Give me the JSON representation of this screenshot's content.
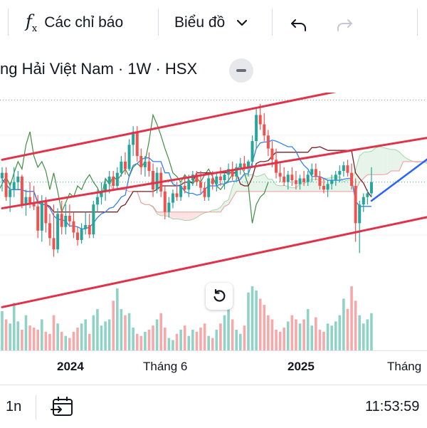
{
  "toolbar": {
    "indicators_icon": "fx-icon",
    "indicators_label": "Các chỉ báo",
    "chart_type_label": "Biểu đồ",
    "chart_type_icon": "chevron-down-icon",
    "undo_icon": "undo-icon",
    "redo_icon": "redo-icon"
  },
  "legend": {
    "title": "ng Hải Việt Nam · 1W · HSX",
    "collapse_icon": "minus-icon"
  },
  "xaxis": {
    "labels": [
      "2024",
      "Tháng 6",
      "2025",
      "Tháng"
    ]
  },
  "reset_button_icon": "reset-icon",
  "bottom_bar": {
    "interval": "1n",
    "goto_icon": "calendar-goto-icon",
    "time": "11:53:59"
  },
  "colors": {
    "up": "#26a69a",
    "down": "#ef5350",
    "channel": "#e0334a",
    "projection": "#2962ff",
    "tenkan": "#2f80ed",
    "kijun": "#7b1f28",
    "chikou": "#3f8f3f",
    "cloud_bull": "#e6f4ea",
    "cloud_bear": "#fde2e2"
  },
  "chart_data": {
    "type": "candlestick",
    "timeframe": "1W",
    "exchange": "HSX",
    "x_axis_labels": [
      "2024",
      "Tháng 6",
      "2025",
      "Tháng"
    ],
    "price_range": [
      0,
      100
    ],
    "note": "prices in relative units (0 = bottom of visible pane, 100 = top); the price scale is not visible",
    "candles": [
      {
        "o": 54,
        "h": 60,
        "l": 47,
        "c": 57
      },
      {
        "o": 57,
        "h": 60,
        "l": 42,
        "c": 44
      },
      {
        "o": 44,
        "h": 52,
        "l": 36,
        "c": 48
      },
      {
        "o": 48,
        "h": 60,
        "l": 44,
        "c": 52
      },
      {
        "o": 52,
        "h": 58,
        "l": 48,
        "c": 55
      },
      {
        "o": 55,
        "h": 56,
        "l": 38,
        "c": 40
      },
      {
        "o": 40,
        "h": 48,
        "l": 34,
        "c": 44
      },
      {
        "o": 44,
        "h": 52,
        "l": 38,
        "c": 41
      },
      {
        "o": 41,
        "h": 50,
        "l": 37,
        "c": 39
      },
      {
        "o": 39,
        "h": 45,
        "l": 22,
        "c": 26
      },
      {
        "o": 26,
        "h": 45,
        "l": 20,
        "c": 42
      },
      {
        "o": 42,
        "h": 44,
        "l": 25,
        "c": 30
      },
      {
        "o": 30,
        "h": 35,
        "l": 18,
        "c": 22
      },
      {
        "o": 22,
        "h": 40,
        "l": 12,
        "c": 16
      },
      {
        "o": 16,
        "h": 38,
        "l": 14,
        "c": 35
      },
      {
        "o": 35,
        "h": 42,
        "l": 24,
        "c": 28
      },
      {
        "o": 28,
        "h": 40,
        "l": 24,
        "c": 34
      },
      {
        "o": 34,
        "h": 40,
        "l": 28,
        "c": 31
      },
      {
        "o": 31,
        "h": 36,
        "l": 22,
        "c": 25
      },
      {
        "o": 25,
        "h": 28,
        "l": 18,
        "c": 21
      },
      {
        "o": 21,
        "h": 30,
        "l": 19,
        "c": 27
      },
      {
        "o": 27,
        "h": 36,
        "l": 24,
        "c": 29
      },
      {
        "o": 29,
        "h": 35,
        "l": 22,
        "c": 24
      },
      {
        "o": 24,
        "h": 42,
        "l": 22,
        "c": 40
      },
      {
        "o": 40,
        "h": 48,
        "l": 36,
        "c": 44
      },
      {
        "o": 44,
        "h": 52,
        "l": 40,
        "c": 47
      },
      {
        "o": 47,
        "h": 54,
        "l": 42,
        "c": 51
      },
      {
        "o": 51,
        "h": 58,
        "l": 46,
        "c": 55
      },
      {
        "o": 55,
        "h": 58,
        "l": 48,
        "c": 50
      },
      {
        "o": 50,
        "h": 60,
        "l": 48,
        "c": 57
      },
      {
        "o": 57,
        "h": 66,
        "l": 55,
        "c": 63
      },
      {
        "o": 63,
        "h": 68,
        "l": 56,
        "c": 59
      },
      {
        "o": 59,
        "h": 75,
        "l": 58,
        "c": 72
      },
      {
        "o": 72,
        "h": 82,
        "l": 66,
        "c": 79
      },
      {
        "o": 79,
        "h": 82,
        "l": 63,
        "c": 66
      },
      {
        "o": 66,
        "h": 70,
        "l": 56,
        "c": 60
      },
      {
        "o": 60,
        "h": 66,
        "l": 55,
        "c": 63
      },
      {
        "o": 63,
        "h": 68,
        "l": 55,
        "c": 58
      },
      {
        "o": 58,
        "h": 62,
        "l": 44,
        "c": 48
      },
      {
        "o": 48,
        "h": 60,
        "l": 46,
        "c": 57
      },
      {
        "o": 57,
        "h": 60,
        "l": 44,
        "c": 47
      },
      {
        "o": 47,
        "h": 50,
        "l": 32,
        "c": 36
      },
      {
        "o": 36,
        "h": 44,
        "l": 33,
        "c": 41
      },
      {
        "o": 41,
        "h": 48,
        "l": 38,
        "c": 46
      },
      {
        "o": 46,
        "h": 52,
        "l": 42,
        "c": 44
      },
      {
        "o": 44,
        "h": 52,
        "l": 42,
        "c": 50
      },
      {
        "o": 50,
        "h": 56,
        "l": 46,
        "c": 48
      },
      {
        "o": 48,
        "h": 56,
        "l": 44,
        "c": 53
      },
      {
        "o": 53,
        "h": 58,
        "l": 50,
        "c": 56
      },
      {
        "o": 56,
        "h": 58,
        "l": 50,
        "c": 52
      },
      {
        "o": 52,
        "h": 58,
        "l": 46,
        "c": 49
      },
      {
        "o": 49,
        "h": 52,
        "l": 42,
        "c": 44
      },
      {
        "o": 44,
        "h": 56,
        "l": 42,
        "c": 54
      },
      {
        "o": 54,
        "h": 58,
        "l": 48,
        "c": 51
      },
      {
        "o": 51,
        "h": 57,
        "l": 47,
        "c": 55
      },
      {
        "o": 55,
        "h": 60,
        "l": 50,
        "c": 53
      },
      {
        "o": 53,
        "h": 58,
        "l": 48,
        "c": 56
      },
      {
        "o": 56,
        "h": 62,
        "l": 52,
        "c": 59
      },
      {
        "o": 59,
        "h": 63,
        "l": 53,
        "c": 55
      },
      {
        "o": 55,
        "h": 62,
        "l": 53,
        "c": 60
      },
      {
        "o": 60,
        "h": 65,
        "l": 56,
        "c": 62
      },
      {
        "o": 62,
        "h": 66,
        "l": 58,
        "c": 60
      },
      {
        "o": 60,
        "h": 64,
        "l": 55,
        "c": 63
      },
      {
        "o": 63,
        "h": 77,
        "l": 60,
        "c": 74
      },
      {
        "o": 74,
        "h": 92,
        "l": 70,
        "c": 88
      },
      {
        "o": 88,
        "h": 94,
        "l": 80,
        "c": 83
      },
      {
        "o": 83,
        "h": 89,
        "l": 74,
        "c": 77
      },
      {
        "o": 77,
        "h": 80,
        "l": 66,
        "c": 70
      },
      {
        "o": 70,
        "h": 74,
        "l": 60,
        "c": 64
      },
      {
        "o": 64,
        "h": 70,
        "l": 54,
        "c": 57
      },
      {
        "o": 57,
        "h": 62,
        "l": 52,
        "c": 55
      },
      {
        "o": 55,
        "h": 60,
        "l": 50,
        "c": 52
      },
      {
        "o": 52,
        "h": 58,
        "l": 48,
        "c": 56
      },
      {
        "o": 56,
        "h": 60,
        "l": 50,
        "c": 53
      },
      {
        "o": 53,
        "h": 58,
        "l": 48,
        "c": 51
      },
      {
        "o": 51,
        "h": 56,
        "l": 48,
        "c": 54
      },
      {
        "o": 54,
        "h": 58,
        "l": 50,
        "c": 52
      },
      {
        "o": 52,
        "h": 58,
        "l": 50,
        "c": 56
      },
      {
        "o": 56,
        "h": 62,
        "l": 52,
        "c": 59
      },
      {
        "o": 59,
        "h": 62,
        "l": 53,
        "c": 55
      },
      {
        "o": 55,
        "h": 58,
        "l": 48,
        "c": 50
      },
      {
        "o": 50,
        "h": 54,
        "l": 46,
        "c": 48
      },
      {
        "o": 48,
        "h": 53,
        "l": 44,
        "c": 51
      },
      {
        "o": 51,
        "h": 56,
        "l": 48,
        "c": 53
      },
      {
        "o": 53,
        "h": 58,
        "l": 50,
        "c": 56
      },
      {
        "o": 56,
        "h": 61,
        "l": 52,
        "c": 58
      },
      {
        "o": 58,
        "h": 63,
        "l": 55,
        "c": 61
      },
      {
        "o": 61,
        "h": 64,
        "l": 55,
        "c": 57
      },
      {
        "o": 57,
        "h": 62,
        "l": 48,
        "c": 50
      },
      {
        "o": 50,
        "h": 54,
        "l": 20,
        "c": 30
      },
      {
        "o": 30,
        "h": 42,
        "l": 14,
        "c": 40
      },
      {
        "o": 40,
        "h": 46,
        "l": 36,
        "c": 44
      },
      {
        "o": 44,
        "h": 48,
        "l": 40,
        "c": 46
      },
      {
        "o": 46,
        "h": 60,
        "l": 44,
        "c": 52
      }
    ],
    "volumes": [
      38,
      30,
      26,
      46,
      28,
      20,
      34,
      24,
      22,
      20,
      30,
      18,
      16,
      34,
      26,
      18,
      14,
      12,
      18,
      22,
      26,
      30,
      16,
      34,
      40,
      24,
      28,
      30,
      48,
      60,
      40,
      34,
      36,
      22,
      16,
      14,
      18,
      20,
      24,
      30,
      36,
      22,
      12,
      10,
      16,
      20,
      24,
      14,
      20,
      18,
      22,
      26,
      14,
      12,
      20,
      26,
      34,
      40,
      30,
      20,
      16,
      24,
      56,
      62,
      58,
      50,
      44,
      34,
      30,
      20,
      18,
      22,
      28,
      34,
      30,
      26,
      30,
      40,
      24,
      32,
      20,
      18,
      26,
      24,
      28,
      34,
      50,
      40,
      62,
      48,
      34,
      26,
      30,
      36
    ],
    "overlays": [
      {
        "name": "channel-upper",
        "kind": "trendline",
        "from": {
          "i": 0,
          "v": 64
        },
        "to": {
          "i": 122,
          "v": 117
        }
      },
      {
        "name": "channel-middle",
        "kind": "trendline",
        "from": {
          "i": 0,
          "v": 38
        },
        "to": {
          "i": 122,
          "v": 81
        }
      },
      {
        "name": "channel-lower",
        "kind": "trendline",
        "from": {
          "i": 0,
          "v": -15
        },
        "to": {
          "i": 122,
          "v": 40
        }
      },
      {
        "name": "projection",
        "kind": "trendline",
        "from": {
          "i": 93,
          "v": 42
        },
        "to": {
          "i": 122,
          "v": 88
        }
      },
      {
        "name": "horizontal-level",
        "kind": "hline",
        "value": 96
      }
    ],
    "indicators": [
      "Ichimoku Cloud",
      "Volume"
    ]
  }
}
